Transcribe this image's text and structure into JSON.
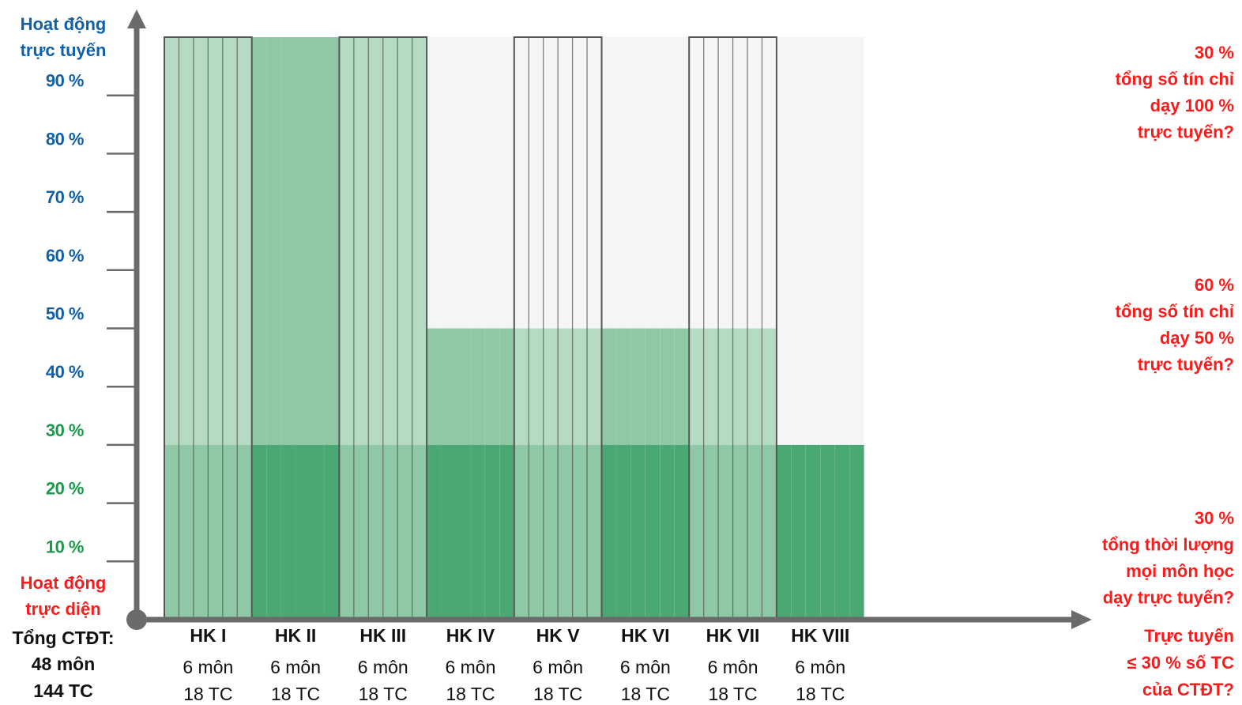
{
  "chart_data": {
    "type": "bar",
    "y_axis": {
      "top_label": [
        "Hoạt động",
        "trực tuyến"
      ],
      "bottom_label": [
        "Hoạt động",
        "trực diện"
      ],
      "ticks": [
        "10 %",
        "20 %",
        "30 %",
        "40 %",
        "50 %",
        "60 %",
        "70 %",
        "80 %",
        "90 %"
      ],
      "range": [
        0,
        100
      ],
      "colors": {
        "label_top": "#1060a8",
        "label_bottom": "#ff1a1a",
        "ticks_high": "#1060a8",
        "ticks_low": "#1a9a4a"
      }
    },
    "total": [
      "Tổng CTĐT:",
      "48 môn",
      "144 TC"
    ],
    "semesters": [
      {
        "name": "HK I",
        "line1": "6 môn",
        "line2": "18 TC"
      },
      {
        "name": "HK II",
        "line1": "6 môn",
        "line2": "18 TC"
      },
      {
        "name": "HK III",
        "line1": "6 môn",
        "line2": "18 TC"
      },
      {
        "name": "HK IV",
        "line1": "6 môn",
        "line2": "18 TC"
      },
      {
        "name": "HK V",
        "line1": "6 môn",
        "line2": "18 TC"
      },
      {
        "name": "HK VI",
        "line1": "6 môn",
        "line2": "18 TC"
      },
      {
        "name": "HK VII",
        "line1": "6 môn",
        "line2": "18 TC"
      },
      {
        "name": "HK VIII",
        "line1": "6 môn",
        "line2": "18 TC"
      }
    ],
    "subjects_per_semester": 6,
    "bands": [
      {
        "from_subject": 0,
        "to_subject": 18,
        "level": 100
      },
      {
        "from_subject": 18,
        "to_subject": 42,
        "level": 50
      },
      {
        "from_subject": 42,
        "to_subject": 48,
        "level": 30
      }
    ],
    "base_level": 30,
    "right_notes": [
      {
        "lines": [
          "30 %",
          "tổng số tín chỉ",
          "dạy 100 %",
          "trực tuyến?"
        ],
        "level": 100
      },
      {
        "lines": [
          "60 %",
          "tổng số tín chỉ",
          "dạy 50 %",
          "trực tuyến?"
        ],
        "level": 50
      },
      {
        "lines": [
          "30 %",
          "tổng thời lượng",
          "mọi môn học",
          "dạy trực tuyến?"
        ],
        "level": 0
      }
    ],
    "x_note": [
      "Trực tuyến",
      "≤ 30 % số TC",
      "của CTĐT?"
    ],
    "colors": {
      "light": "#b5dcc2",
      "mid": "#8ec8a4",
      "dark": "#4aa874",
      "outline": "#555555",
      "axis": "#6b6b6b",
      "note": "#ff1a1a"
    }
  }
}
